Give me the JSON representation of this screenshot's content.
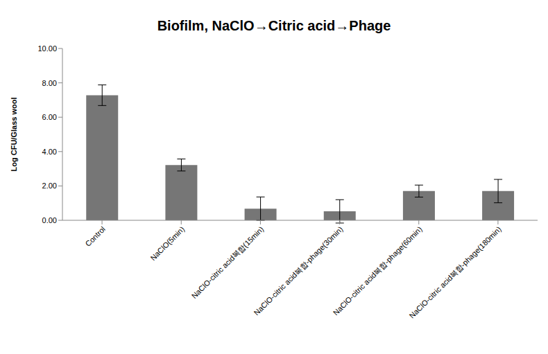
{
  "chart_data": {
    "type": "bar",
    "title": "Biofilm, NaClO→Citric acid→Phage",
    "y_label": "Log CFU/Glass wool",
    "categories": [
      "Control",
      "NaClO(5min)",
      "NaClO-citric acid복합(15min)",
      "NaClO-citric acid복합-phage(30min)",
      "NaClO-citric acid복합-phage(60min)",
      "NaClO-citric acid복합-phage(180min)"
    ],
    "values": [
      7.28,
      3.22,
      0.68,
      0.52,
      1.7,
      1.7
    ],
    "error": [
      0.6,
      0.35,
      0.68,
      0.68,
      0.35,
      0.68
    ],
    "color": "#767676",
    "ylim": [
      0,
      10
    ],
    "yticks": [
      {
        "value": 0,
        "label": "0.00"
      },
      {
        "value": 2,
        "label": "2.00"
      },
      {
        "value": 4,
        "label": "4.00"
      },
      {
        "value": 6,
        "label": "6.00"
      },
      {
        "value": 8,
        "label": "8.00"
      },
      {
        "value": 10,
        "label": "10.00"
      }
    ],
    "grid": false
  }
}
